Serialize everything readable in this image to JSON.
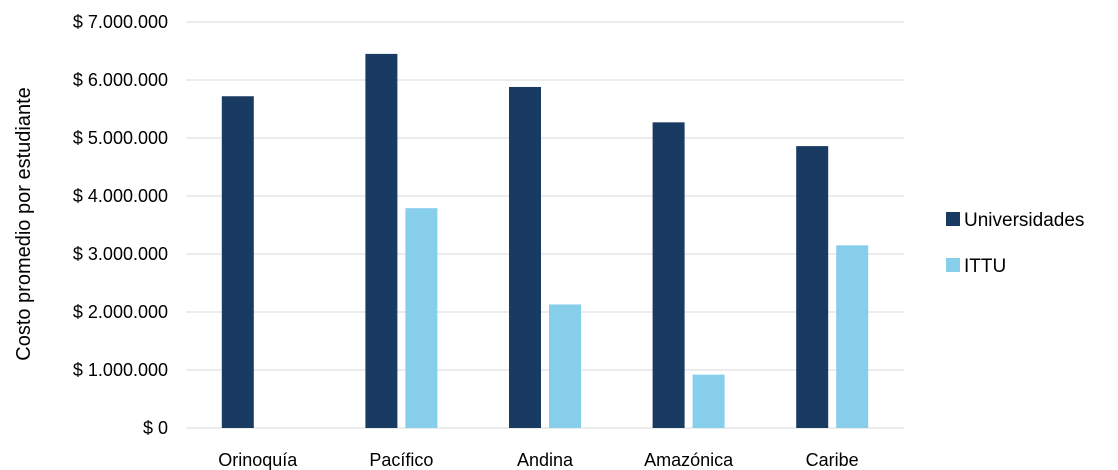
{
  "chart_data": {
    "type": "bar",
    "title": "",
    "xlabel": "",
    "ylabel": "Costo promedio por estudiante",
    "categories": [
      "Orinoquía",
      "Pacífico",
      "Andina",
      "Amazónica",
      "Caribe"
    ],
    "series": [
      {
        "name": "Universidades",
        "color": "#193b62",
        "values": [
          5720000,
          6450000,
          5880000,
          5270000,
          4860000
        ]
      },
      {
        "name": "ITTU",
        "color": "#87ceeb",
        "values": [
          0,
          3790000,
          2130000,
          920000,
          3150000
        ]
      }
    ],
    "ylim": [
      0,
      7000000
    ],
    "y_ticks": [
      0,
      1000000,
      2000000,
      3000000,
      4000000,
      5000000,
      6000000,
      7000000
    ],
    "y_tick_labels": [
      "$ 0",
      "$ 1.000.000",
      "$ 2.000.000",
      "$ 3.000.000",
      "$ 4.000.000",
      "$ 5.000.000",
      "$ 6.000.000",
      "$ 7.000.000"
    ],
    "grid": true,
    "legend_position": "right"
  }
}
